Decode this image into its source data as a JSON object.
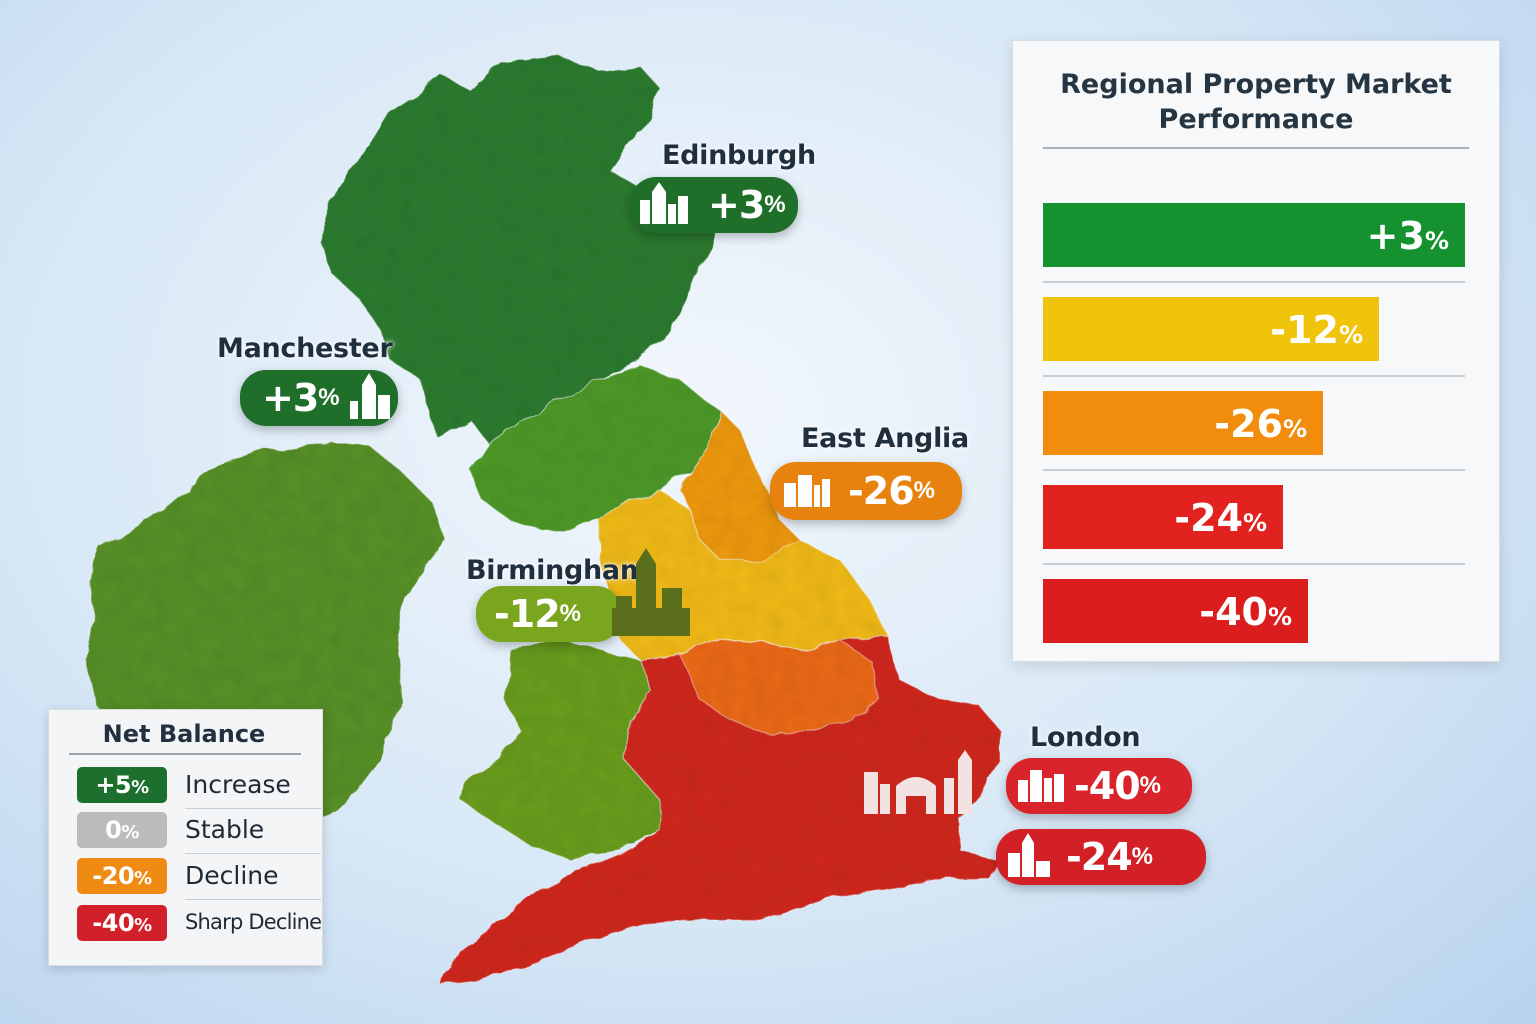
{
  "map": {
    "cities": [
      {
        "id": "edinburgh",
        "name": "Edinburgh",
        "value": "+3",
        "unit": "%",
        "color": "#1f6e2a"
      },
      {
        "id": "manchester",
        "name": "Manchester",
        "value": "+3",
        "unit": "%",
        "color": "#1f6e2a"
      },
      {
        "id": "east-anglia",
        "name": "East Anglia",
        "value": "-26",
        "unit": "%",
        "color": "#e8820f"
      },
      {
        "id": "birmingham",
        "name": "Birmingham",
        "value": "-12",
        "unit": "%",
        "color": "#7aa51f"
      },
      {
        "id": "london",
        "name": "London",
        "value": "-40",
        "unit": "%",
        "color": "#d8242a"
      },
      {
        "id": "london-south",
        "name": "",
        "value": "-24",
        "unit": "%",
        "color": "#d22026"
      }
    ],
    "region_colors": {
      "scotland": "#2d7d32",
      "ireland": "#58922c",
      "north_england": "#4f9a2c",
      "wales": "#6a9e22",
      "yorkshire": "#f09a14",
      "midlands": "#f2bb1c",
      "east_midlands": "#ec6a1c",
      "south": "#d12a22"
    }
  },
  "chart": {
    "title_line1": "Regional Property Market",
    "title_line2": "Performance"
  },
  "chart_data": {
    "type": "bar",
    "title": "Regional Property Market Performance",
    "orientation": "horizontal",
    "values": [
      3,
      -12,
      -26,
      -24,
      -40
    ],
    "labels": [
      "+3%",
      "-12%",
      "-26%",
      "-24%",
      "-40%"
    ],
    "colors": [
      "#16912f",
      "#efc40a",
      "#f28c0d",
      "#e2221f",
      "#db1d1d"
    ]
  },
  "legend": {
    "title": "Net Balance",
    "items": [
      {
        "value": "+5",
        "unit": "%",
        "label": "Increase",
        "color": "#1d6f2e"
      },
      {
        "value": "0",
        "unit": "%",
        "label": "Stable",
        "color": "#bcbcbc"
      },
      {
        "value": "-20",
        "unit": "%",
        "label": "Decline",
        "color": "#ef8a12"
      },
      {
        "value": "-40",
        "unit": "%",
        "label": "Sharp Decline",
        "color": "#d2202a"
      }
    ]
  }
}
